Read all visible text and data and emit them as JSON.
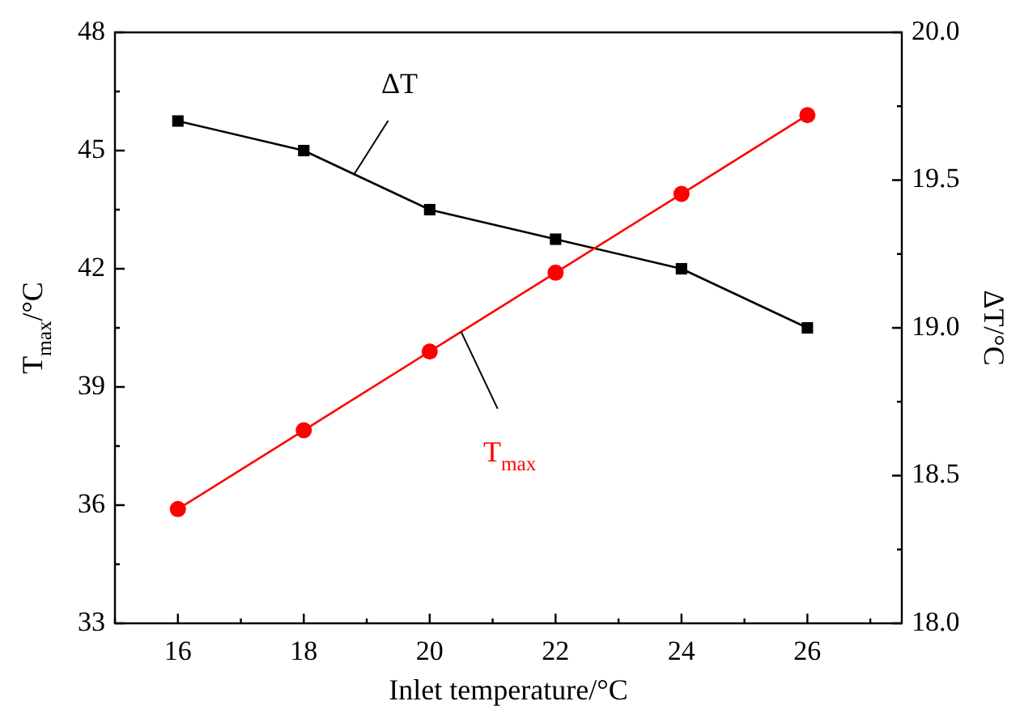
{
  "chart_data": {
    "type": "line",
    "xlabel": "Inlet temperature/°C",
    "ylabel": "T$_{max}$/°C",
    "y2label": "ΔT/°C",
    "x": [
      16,
      18,
      20,
      22,
      24,
      26
    ],
    "series": [
      {
        "name": "T$_{max}$",
        "color": "#ff0000",
        "marker": "circle",
        "values": [
          35.9,
          37.9,
          39.9,
          41.9,
          43.9,
          45.9
        ]
      },
      {
        "name": "ΔT",
        "color": "#000000",
        "marker": "square",
        "axis": "y2",
        "values": [
          19.7,
          19.6,
          19.4,
          19.3,
          19.2,
          19.0
        ]
      }
    ],
    "xlim": [
      15,
      27.5
    ],
    "xticks": [
      {
        "value": 15,
        "label": null
      },
      16,
      {
        "value": 17,
        "label": null
      },
      18,
      {
        "value": 19,
        "label": null
      },
      20,
      {
        "value": 21,
        "label": null
      },
      22,
      {
        "value": 23,
        "label": null
      },
      24,
      {
        "value": 25,
        "label": null
      },
      26,
      {
        "value": 27,
        "label": null
      }
    ],
    "ylim": [
      33,
      48
    ],
    "yticks": [
      33,
      {
        "value": 34.5,
        "label": null
      },
      36,
      {
        "value": 37.5,
        "label": null
      },
      39,
      {
        "value": 40.5,
        "label": null
      },
      42,
      {
        "value": 43.5,
        "label": null
      },
      45,
      {
        "value": 46.5,
        "label": null
      },
      48
    ],
    "y2lim": [
      18,
      20
    ],
    "y2ticks": [
      {
        "value": 18,
        "label": "18.0"
      },
      {
        "value": 18.25,
        "label": null
      },
      {
        "value": 18.5,
        "label": "18.5"
      },
      {
        "value": 18.75,
        "label": null
      },
      {
        "value": 19,
        "label": "19.0"
      },
      {
        "value": 19.25,
        "label": null
      },
      {
        "value": 19.5,
        "label": "19.5"
      },
      {
        "value": 19.75,
        "label": null
      },
      {
        "value": 20,
        "label": "20.0"
      }
    ],
    "grid": false,
    "legend": false,
    "line_style": "solid"
  }
}
